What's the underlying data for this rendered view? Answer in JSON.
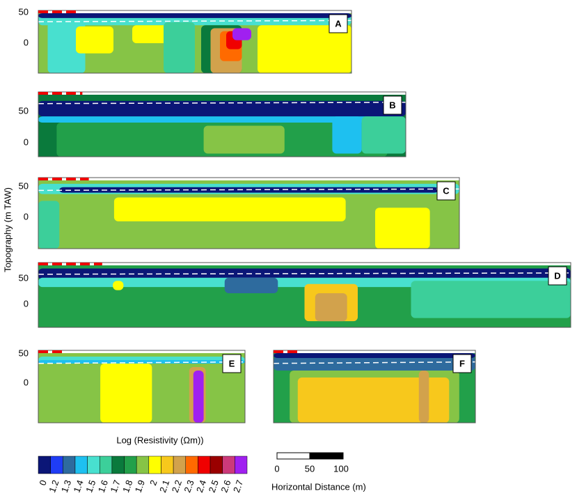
{
  "y_axis_label": "Topography (m TAW)",
  "panels": [
    {
      "label": "A",
      "yticks": [
        "50",
        "0"
      ]
    },
    {
      "label": "B",
      "yticks": [
        "50",
        "0"
      ]
    },
    {
      "label": "C",
      "yticks": [
        "50",
        "0"
      ]
    },
    {
      "label": "D",
      "yticks": [
        "50",
        "0"
      ]
    },
    {
      "label": "E",
      "yticks": [
        "50",
        "0"
      ]
    },
    {
      "label": "F",
      "yticks": []
    }
  ],
  "colorbar": {
    "title": "Log (Resistivity (Ωm))",
    "levels": [
      {
        "label": "0",
        "color": "#0b1677"
      },
      {
        "label": "1.2",
        "color": "#1f3df5"
      },
      {
        "label": "1.3",
        "color": "#2e6b9e"
      },
      {
        "label": "1.4",
        "color": "#1ec0f0"
      },
      {
        "label": "1.5",
        "color": "#48e0cf"
      },
      {
        "label": "1.6",
        "color": "#3ccf9a"
      },
      {
        "label": "1.7",
        "color": "#0a7a3c"
      },
      {
        "label": "1.8",
        "color": "#22a04a"
      },
      {
        "label": "1.9",
        "color": "#86c446"
      },
      {
        "label": "2",
        "color": "#ffff00"
      },
      {
        "label": "2.1",
        "color": "#f7c81c"
      },
      {
        "label": "2.2",
        "color": "#d2a24c"
      },
      {
        "label": "2.3",
        "color": "#ff6a00"
      },
      {
        "label": "2.4",
        "color": "#f00000"
      },
      {
        "label": "2.5",
        "color": "#9a0000"
      },
      {
        "label": "2.6",
        "color": "#cc3a7a"
      },
      {
        "label": "2.7",
        "color": "#a020f0"
      }
    ]
  },
  "scale_bar": {
    "ticks": [
      "0",
      "50",
      "100"
    ],
    "label": "Horizontal Distance (m)"
  }
}
